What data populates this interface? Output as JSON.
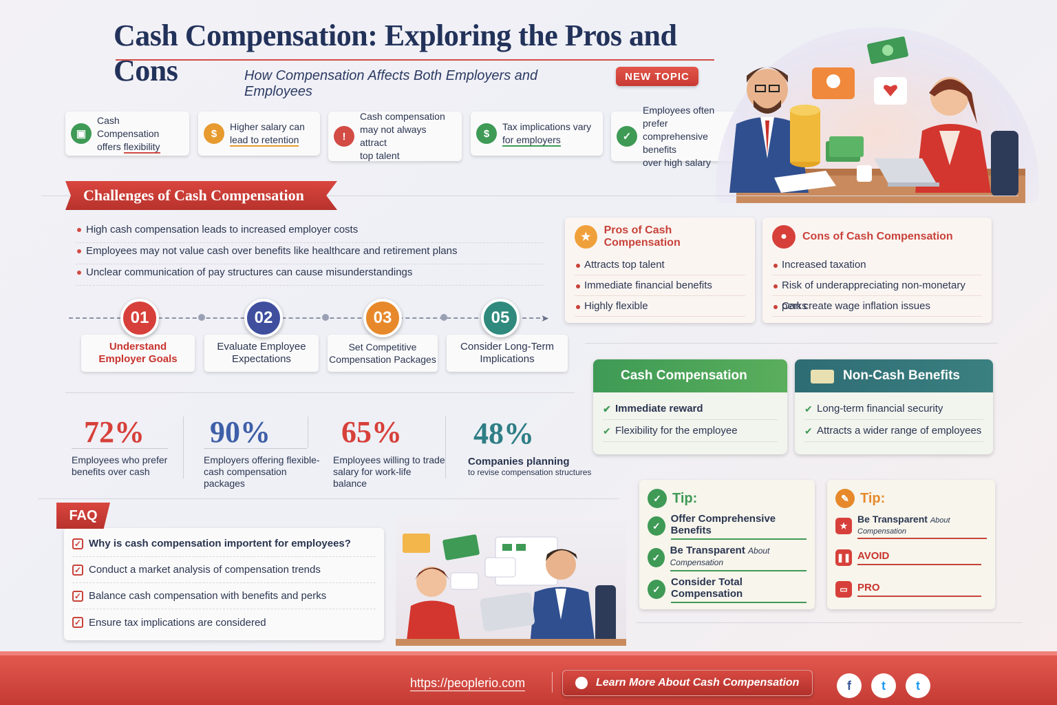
{
  "header": {
    "title": "Cash Compensation: Exploring the Pros and Cons",
    "subtitle": "How Compensation Affects Both Employers and Employees",
    "badge": "NEW TOPIC"
  },
  "facts": [
    {
      "line1": "Cash Compensation",
      "line2_pre": "offers ",
      "line2_u": "flexibility",
      "icon": "money-icon",
      "color": "#3e9a55"
    },
    {
      "line1": "Higher salary can",
      "line2_pre": "",
      "line2_u": "lead to retention",
      "icon": "dollar-coin-icon",
      "color": "#e79a2e"
    },
    {
      "line1": "Cash compensation",
      "line2": "may not always attract",
      "line3": "top talent",
      "icon": "warning-shield-icon",
      "color": "#d24b45"
    },
    {
      "line1": "Tax implications vary",
      "line2_pre": "",
      "line2_u": "for employers",
      "icon": "dollar-coin-icon",
      "color": "#3e9a55"
    },
    {
      "line1": "Employees often prefer",
      "line2": "comprehensive benefits",
      "line3": "over high salary",
      "icon": "check-shield-icon",
      "color": "#3e9a55"
    }
  ],
  "challenges": {
    "heading": "Challenges of Cash Compensation",
    "items": [
      "High cash compensation leads to increased employer costs",
      "Employees may not value cash over benefits like healthcare and retirement plans",
      "Unclear communication of pay structures can cause misunderstandings"
    ]
  },
  "steps": [
    {
      "num": "01",
      "line1": "Understand",
      "line2": "Employer Goals",
      "color": "#d7403a"
    },
    {
      "num": "02",
      "line1": "Evaluate Employee",
      "line2": "Expectations",
      "color": "#3f4f9e"
    },
    {
      "num": "03",
      "line1": "Set Competitive",
      "line2": "Compensation Packages",
      "color": "#e7892a"
    },
    {
      "num": "05",
      "line1": "Consider Long-Term",
      "line2": "Implications",
      "color": "#2f8a7d"
    }
  ],
  "stats": [
    {
      "value": "72%",
      "line1": "Employees who prefer",
      "line2": "benefits over cash",
      "color": "#d7403a"
    },
    {
      "value": "90%",
      "line1": "Employers offering flexible-",
      "line2": "cash compensation packages",
      "color": "#3f5fa8"
    },
    {
      "value": "65%",
      "line1": "Employees willing to trade",
      "line2": "salary for work-life balance",
      "color": "#d7403a"
    },
    {
      "value": "48%",
      "line1": "Companies planning",
      "line2": "to revise compensation structures",
      "color": "#2f7e86"
    }
  ],
  "pros": {
    "heading": "Pros of Cash Compensation",
    "items": [
      "Attracts top talent",
      "Immediate financial benefits",
      "Highly flexible"
    ]
  },
  "cons": {
    "heading": "Cons of Cash Compensation",
    "items": [
      "Increased taxation",
      "Risk of underappreciating non-monetary perks",
      "Can create wage inflation issues"
    ]
  },
  "cash_card": {
    "heading": "Cash Compensation",
    "items": [
      "Immediate reward",
      "Flexibility for the employee"
    ]
  },
  "noncash_card": {
    "heading": "Non-Cash Benefits",
    "items": [
      "Long-term financial security",
      "Attracts a wider range of employees"
    ]
  },
  "tip_green": {
    "heading": "Tip:",
    "items": [
      {
        "main": "Offer Comprehensive Benefits",
        "small": ""
      },
      {
        "main": "Be Transparent ",
        "small": "About Compensation"
      },
      {
        "main": "Consider Total Compensation",
        "small": ""
      }
    ]
  },
  "tip_orange": {
    "heading": "Tip:",
    "items": [
      {
        "main": "Be Transparent ",
        "small": "About Compensation"
      },
      {
        "main": "AVOID",
        "small": ""
      },
      {
        "main": "PRO",
        "small": ""
      }
    ]
  },
  "faq": {
    "tag": "FAQ",
    "items": [
      "Why is cash compensation importent for employees?",
      "Conduct a market analysis of compensation trends",
      "Balance cash compensation with benefits and perks",
      "Ensure tax implications are considered"
    ]
  },
  "footer": {
    "url": "https://peoplerio.com",
    "cta": "Learn More About Cash Compensation",
    "social": [
      {
        "icon": "facebook-icon",
        "glyph": "f",
        "color": "#3b5998"
      },
      {
        "icon": "twitter-icon",
        "glyph": "t",
        "color": "#1d9bf0"
      },
      {
        "icon": "twitter-icon",
        "glyph": "t",
        "color": "#1d9bf0"
      }
    ]
  }
}
